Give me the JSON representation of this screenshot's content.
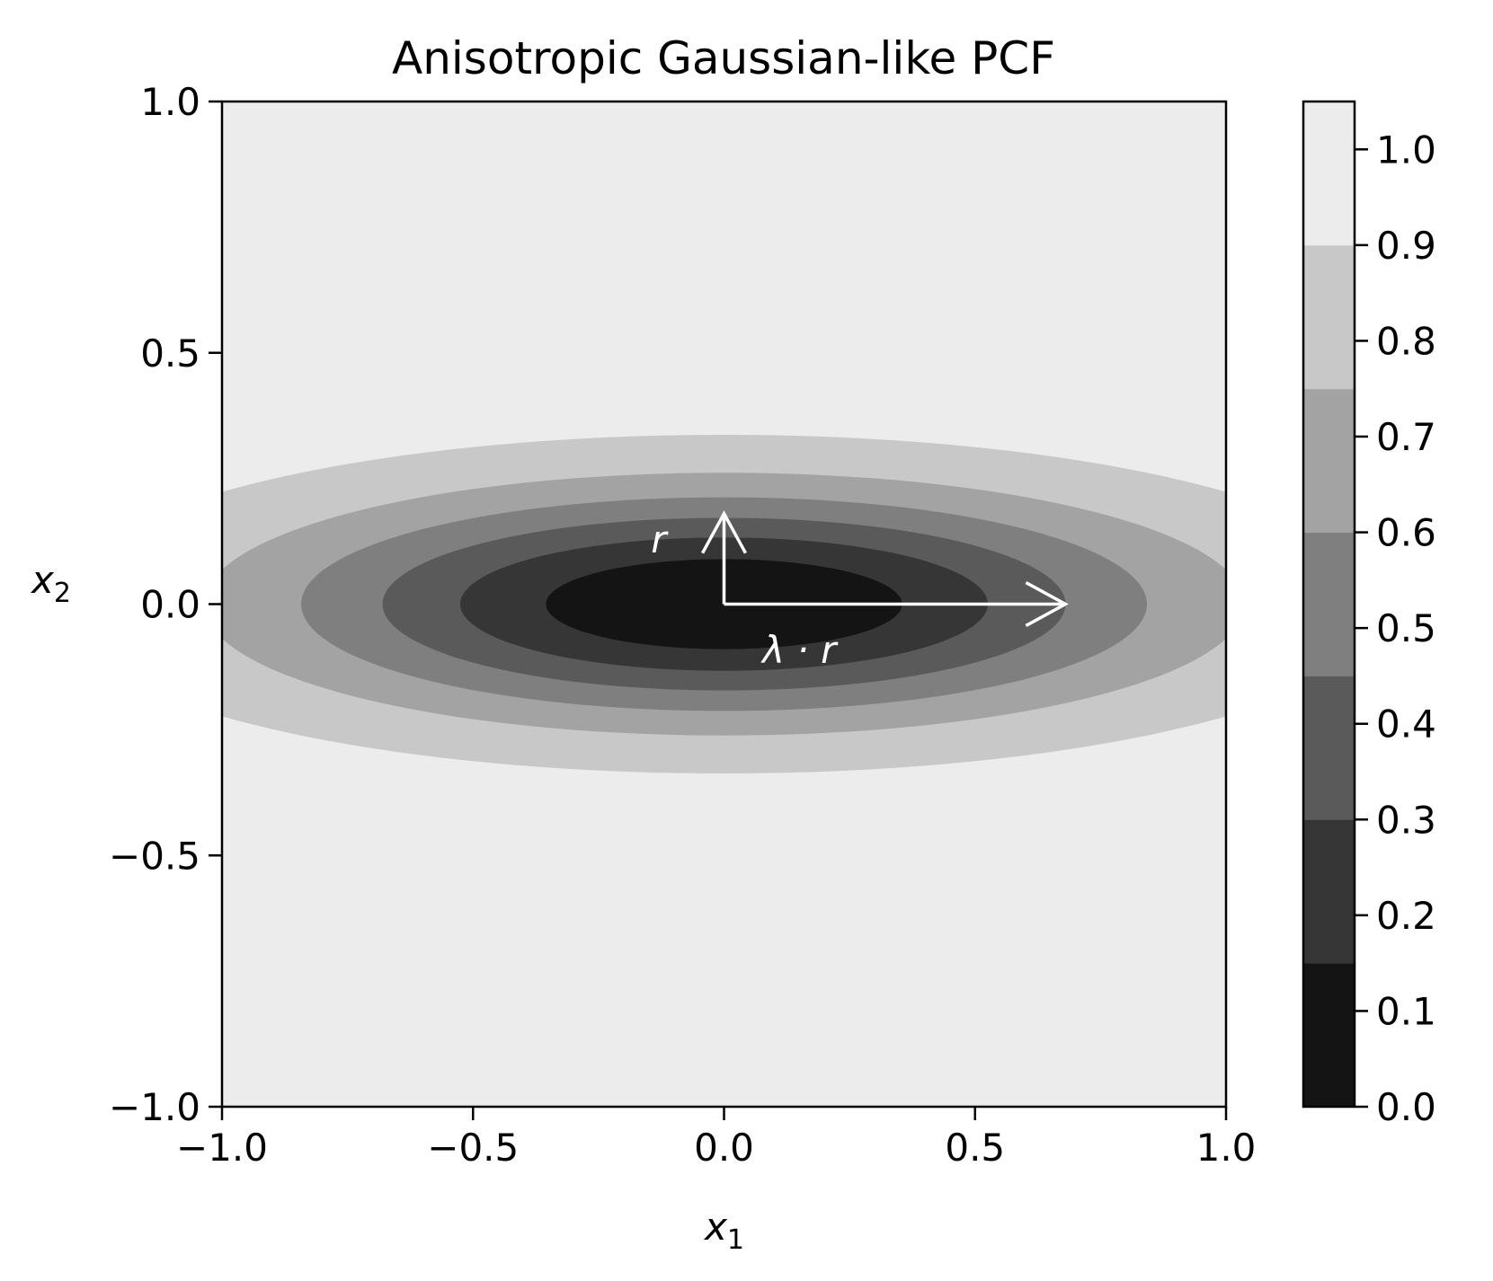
{
  "chart_data": {
    "type": "contourf",
    "title": "Anisotropic Gaussian-like PCF",
    "xlabel": "x",
    "xlabel_sub": "1",
    "ylabel": "x",
    "ylabel_sub": "2",
    "xlim": [
      -1.0,
      1.0
    ],
    "ylim": [
      -1.0,
      1.0
    ],
    "xticks": [
      -1.0,
      -0.5,
      0.0,
      0.5,
      1.0
    ],
    "xtick_labels": [
      "−1.0",
      "−0.5",
      "0.0",
      "0.5",
      "1.0"
    ],
    "yticks": [
      -1.0,
      -0.5,
      0.0,
      0.5,
      1.0
    ],
    "ytick_labels": [
      "−1.0",
      "−0.5",
      "0.0",
      "0.5",
      "1.0"
    ],
    "function": "1 - exp(-(x1^2/a^2 + x2^2/b^2))",
    "a": 0.88,
    "b": 0.222,
    "levels": [
      0.0,
      0.15,
      0.3,
      0.45,
      0.6,
      0.75,
      0.9,
      1.05
    ],
    "level_colors": [
      "#141414",
      "#363636",
      "#5a5a5a",
      "#7f7f7f",
      "#a3a3a3",
      "#c8c8c8",
      "#ececec"
    ],
    "colorbar": {
      "range": [
        0.0,
        1.05
      ],
      "ticks": [
        0.0,
        0.1,
        0.2,
        0.3,
        0.4,
        0.5,
        0.6,
        0.7,
        0.8,
        0.9,
        1.0
      ],
      "tick_labels": [
        "0.0",
        "0.1",
        "0.2",
        "0.3",
        "0.4",
        "0.5",
        "0.6",
        "0.7",
        "0.8",
        "0.9",
        "1.0"
      ]
    },
    "annotations": {
      "arrow_r": {
        "from": [
          0.0,
          0.0
        ],
        "to": [
          0.0,
          0.18
        ],
        "label": "r",
        "label_at": [
          -0.13,
          0.13
        ]
      },
      "arrow_lambda_r": {
        "from": [
          0.0,
          0.0
        ],
        "to": [
          0.68,
          0.0
        ],
        "label": "λ · r",
        "label_at": [
          0.15,
          -0.09
        ]
      },
      "color": "#ffffff"
    }
  }
}
